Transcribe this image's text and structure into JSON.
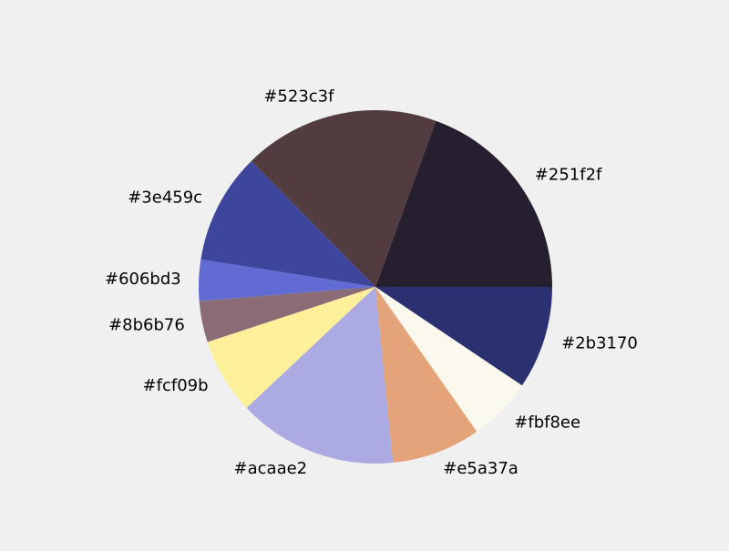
{
  "chart_data": {
    "type": "pie",
    "title": "",
    "start_angle_deg": 0,
    "direction": "counterclockwise",
    "slices": [
      {
        "label": "#251f2f",
        "value": 0.196,
        "color": "#251f2f"
      },
      {
        "label": "#523c3f",
        "value": 0.181,
        "color": "#523c3f"
      },
      {
        "label": "#3e459c",
        "value": 0.102,
        "color": "#3e459c"
      },
      {
        "label": "#606bd3",
        "value": 0.038,
        "color": "#606bd3"
      },
      {
        "label": "#8b6b76",
        "value": 0.038,
        "color": "#8b6b76"
      },
      {
        "label": "#fcf09b",
        "value": 0.07,
        "color": "#fcf09b"
      },
      {
        "label": "#acaae2",
        "value": 0.147,
        "color": "#acaae2"
      },
      {
        "label": "#e5a37a",
        "value": 0.082,
        "color": "#e5a37a"
      },
      {
        "label": "#fbf8ee",
        "value": 0.059,
        "color": "#fbf8ee"
      },
      {
        "label": "#2b3170",
        "value": 0.095,
        "color": "#2b3170"
      }
    ]
  }
}
